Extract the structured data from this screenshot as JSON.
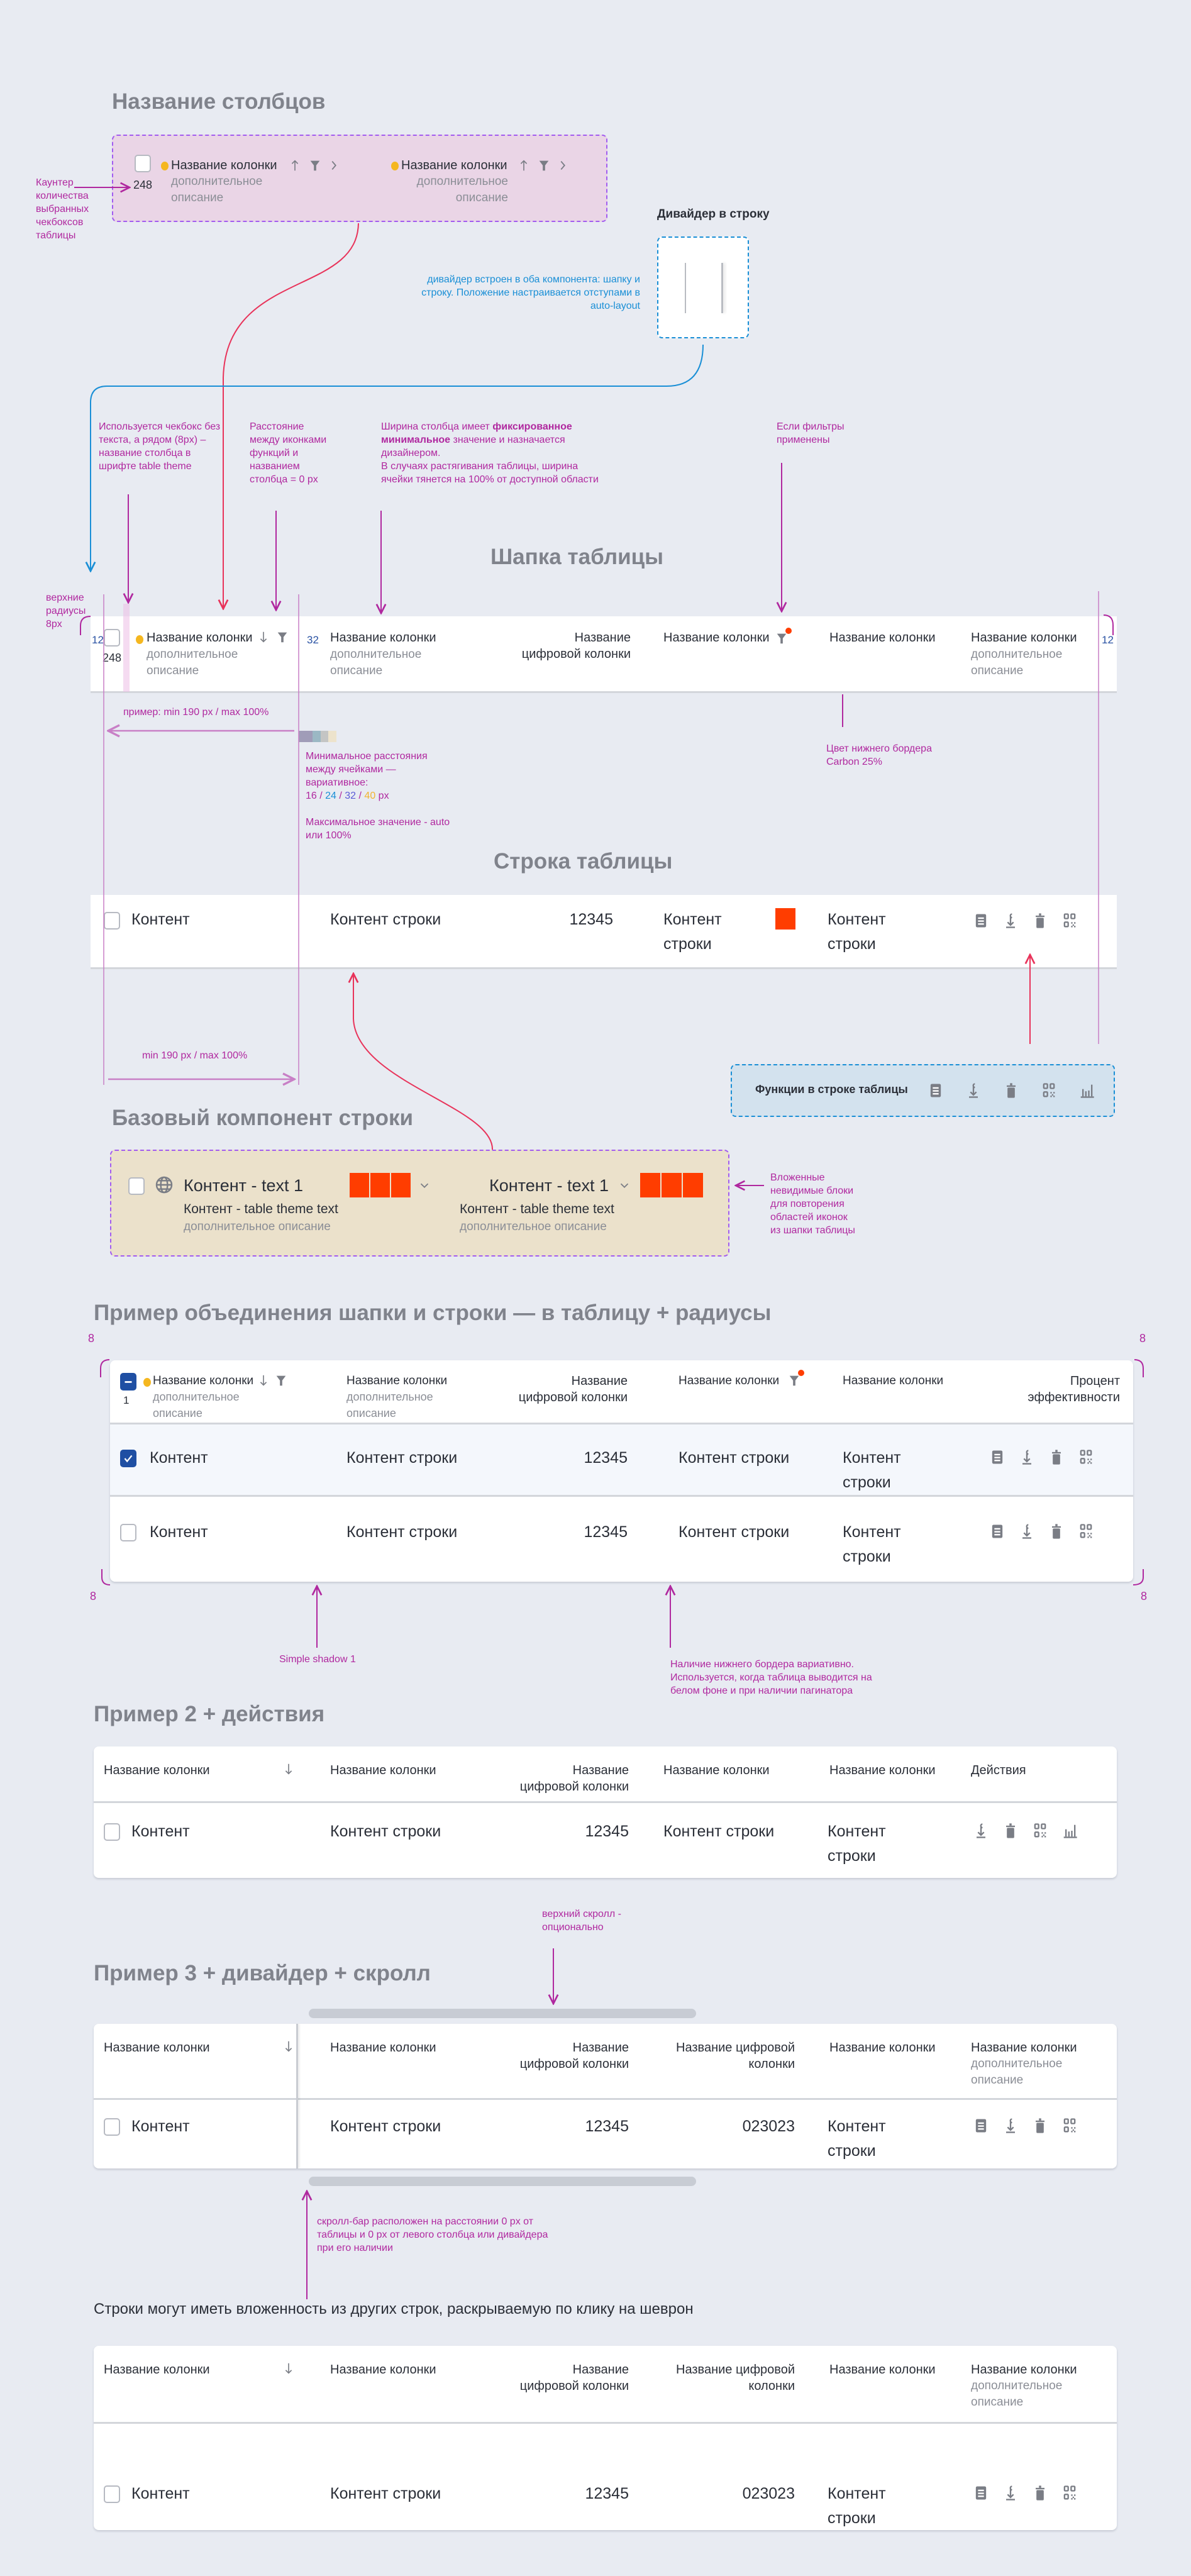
{
  "colors": {
    "background": "#e8ebf2",
    "annotation": "#b0289f",
    "accent_blue": "#1f4fa3",
    "info_blue": "#1a8fd6",
    "dot": "#f5b71f",
    "alert": "#ff3d00",
    "icon": "#7a7d85"
  },
  "column_names": {
    "title": "Название столбцов",
    "counter": "248",
    "counter_note": "Каунтер количества выбранных чекбоксов таблицы",
    "columns": [
      {
        "title": "Название колонки",
        "desc": "дополнительное\nописание",
        "icons": [
          "dot",
          "arrow-up-icon",
          "filter-icon",
          "chevron-right-icon"
        ]
      },
      {
        "title": "Название колонки",
        "desc": "дополнительное\nописание",
        "icons": [
          "dot",
          "arrow-up-icon",
          "filter-icon",
          "chevron-right-icon"
        ]
      }
    ]
  },
  "divider": {
    "title": "Дивайдер в строку",
    "note": "дивайдер встроен в оба компонента: шапку и строку. Положение настраивается отступами в auto-layout"
  },
  "notes": {
    "checkbox": "Используется чекбокс без текста, а рядом (8px) – название столбца в шрифте table theme",
    "icon_gap": "Расстояние между иконками функций и названием столбца = 0 px",
    "width_1": "Ширина столбца имеет ",
    "width_bold": "фиксированное минимальное",
    "width_2": " значение и назначается дизайнером.",
    "width_3": "В случаях растягивания таблицы, ширина ячейки тянется на 100% от доступной области",
    "filters": "Если фильтры применены",
    "radius": "верхние радиусы 8px",
    "example_width": "пример: min 190 px / max 100%",
    "min_gap": "Минимальное расстояния между ячейками —вариативное:",
    "gaps": [
      "16",
      "24",
      "32",
      "40"
    ],
    "gap_separator": " / ",
    "gap_unit": " px",
    "gap_colors": [
      "#b0289f",
      "#1a8fd6",
      "#5b5bd6",
      "#f2b430"
    ],
    "max_value": "Максимальное значение - auto или 100%",
    "border_color": "Цвет нижнего бордера Carbon 25%",
    "row_width": "min 190 px / max 100%",
    "nested_blocks": "Вложенные невидимые блоки для повторения областей иконок из шапки таблицы",
    "shadow": "Simple shadow 1",
    "bottom_border": "Наличие нижнего бордера вариативно. Используется, когда таблица выводится на белом фоне и при наличии пагинатора",
    "top_scroll": "верхний скролл - опционально",
    "scroll_position": "скролл-бар расположен на расстоянии 0 px от таблицы и 0 px от левого столбца или дивайдера при его наличии"
  },
  "header_section": {
    "title": "Шапка таблицы",
    "pad_left": "12",
    "pad_right": "12",
    "cell_gap": "32",
    "counter": "248",
    "columns": [
      {
        "title": "Название колонки",
        "desc": "дополнительное\nописание"
      },
      {
        "title": "Название колонки",
        "desc": "дополнительное\nописание"
      },
      {
        "title": "Название\nцифровой колонки"
      },
      {
        "title": "Название колонки"
      },
      {
        "title": "Название колонки"
      },
      {
        "title": "Название колонки",
        "desc": "дополнительное\nописание"
      }
    ]
  },
  "row_section": {
    "title": "Строка таблицы",
    "cells": [
      "Контент",
      "Контент строки",
      "12345",
      "Контент строки",
      "Контент строки"
    ],
    "actions": [
      "doc-icon",
      "sign-icon",
      "trash-icon",
      "qr-icon"
    ]
  },
  "functions_panel": {
    "label": "Функции в строке таблицы",
    "icons": [
      "doc-icon",
      "sign-icon",
      "trash-icon",
      "qr-icon",
      "chart-icon"
    ]
  },
  "base_row": {
    "title": "Базовый компонент строки",
    "cells": [
      {
        "title": "Контент - text 1",
        "theme": "Контент - table theme text",
        "desc": "дополнительное описание"
      },
      {
        "title": "Контент - text 1",
        "theme": "Контент - table theme text",
        "desc": "дополнительное описание"
      }
    ]
  },
  "example1": {
    "title": "Пример объединения шапки и строки — в таблицу + радиусы",
    "radius": "8",
    "selected_count": "1",
    "header": [
      {
        "title": "Название колонки",
        "desc": "дополнительное\nописание"
      },
      {
        "title": "Название колонки",
        "desc": "дополнительное\nописание"
      },
      {
        "title": "Название\nцифровой колонки"
      },
      {
        "title": "Название колонки"
      },
      {
        "title": "Название колонки"
      },
      {
        "title": "Процент\nэффективности"
      }
    ],
    "rows": [
      {
        "selected": true,
        "cells": [
          "Контент",
          "Контент строки",
          "12345",
          "Контент строки",
          "Контент строки"
        ]
      },
      {
        "selected": false,
        "cells": [
          "Контент",
          "Контент строки",
          "12345",
          "Контент строки",
          "Контент строки"
        ]
      }
    ]
  },
  "example2": {
    "title": "Пример 2 + действия",
    "header": [
      "Название колонки",
      "Название колонки",
      "Название\nцифровой колонки",
      "Название колонки",
      "Название колонки",
      "Действия"
    ],
    "rows": [
      {
        "cells": [
          "Контент",
          "Контент строки",
          "12345",
          "Контент строки",
          "Контент строки"
        ]
      }
    ],
    "actions": [
      "sign-icon",
      "trash-icon",
      "qr-icon",
      "chart-icon"
    ]
  },
  "example3": {
    "title": "Пример 3 + дивайдер + скролл",
    "header": [
      "Название колонки",
      "Название колонки",
      "Название\nцифровой колонки",
      "Название цифровой\nколонки",
      "Название колонки",
      "Название колонки"
    ],
    "last_desc": "дополнительное\nописание",
    "rows": [
      {
        "cells": [
          "Контент",
          "Контент строки",
          "12345",
          "023023",
          "Контент строки"
        ]
      }
    ]
  },
  "example4": {
    "title": "Строки могут иметь вложенность из других строк, раскрываемую по клику на шеврон",
    "header": [
      "Название колонки",
      "Название колонки",
      "Название\nцифровой колонки",
      "Название цифровой\nколонки",
      "Название колонки",
      "Название колонки"
    ],
    "last_desc": "дополнительное\nописание",
    "rows": [
      {
        "cells": [
          "Контент",
          "Контент строки",
          "12345",
          "023023",
          "Контент строки"
        ]
      }
    ]
  }
}
